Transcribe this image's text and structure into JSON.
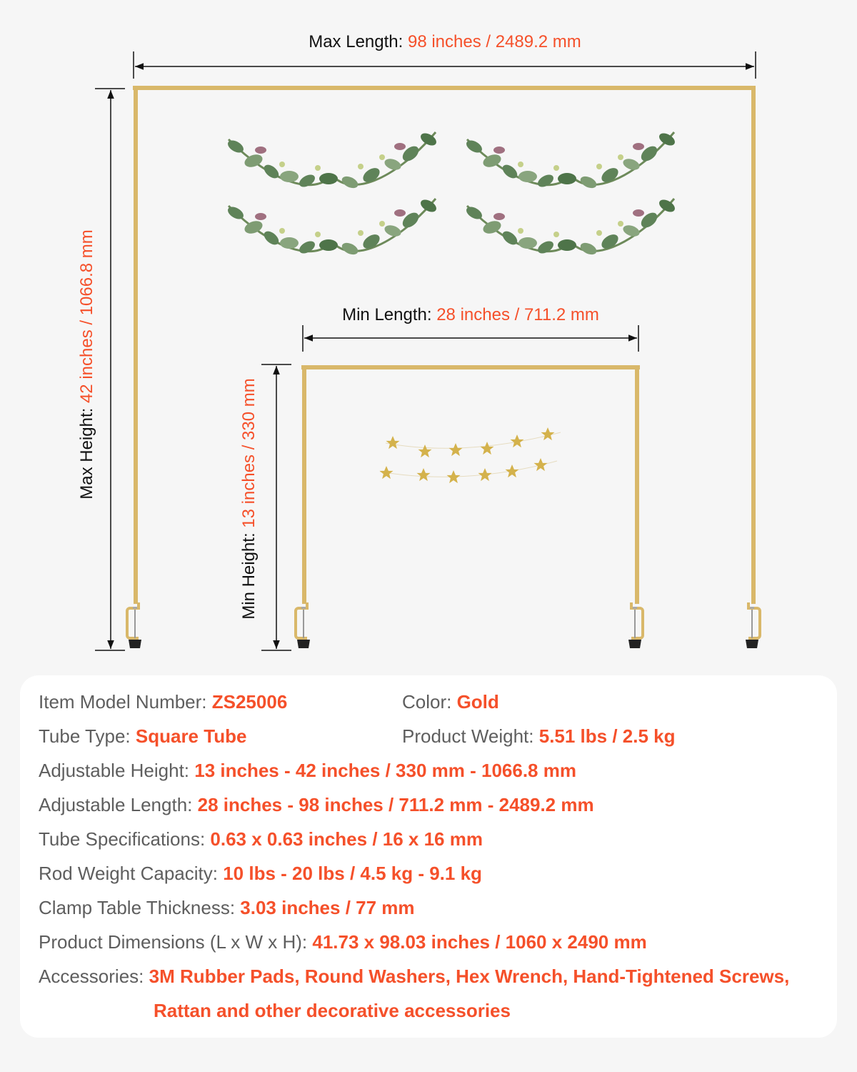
{
  "dimensions": {
    "max_length": {
      "label": "Max Length: ",
      "value": "98 inches / 2489.2 mm"
    },
    "max_height": {
      "label": "Max Height: ",
      "value": "42 inches / 1066.8 mm"
    },
    "min_length": {
      "label": "Min Length: ",
      "value": "28 inches / 711.2 mm"
    },
    "min_height": {
      "label": "Min Height: ",
      "value": "13 inches / 330 mm"
    }
  },
  "colors": {
    "accent": "#f5502a",
    "frame": "#d9b86a",
    "label": "#5e5e5e"
  },
  "specs": [
    {
      "label": "Item Model Number: ",
      "value": "ZS25006"
    },
    {
      "label": "Color: ",
      "value": "Gold"
    },
    {
      "label": "Tube Type: ",
      "value": "Square Tube"
    },
    {
      "label": "Product Weight: ",
      "value": "5.51 lbs / 2.5 kg"
    },
    {
      "label": "Adjustable Height: ",
      "value": "13 inches - 42 inches / 330 mm - 1066.8 mm"
    },
    {
      "label": "Adjustable Length: ",
      "value": "28 inches - 98 inches / 711.2 mm - 2489.2 mm"
    },
    {
      "label": "Tube Specifications: ",
      "value": "0.63 x 0.63 inches / 16 x 16 mm"
    },
    {
      "label": "Rod Weight Capacity: ",
      "value": "10 lbs - 20 lbs / 4.5 kg - 9.1 kg"
    },
    {
      "label": "Clamp Table Thickness: ",
      "value": "3.03 inches / 77 mm"
    },
    {
      "label": "Product Dimensions (L x W x H): ",
      "value": "41.73 x 98.03 inches / 1060 x 2490 mm"
    },
    {
      "label": "Accessories: ",
      "value": "3M Rubber Pads, Round Washers, Hex Wrench, Hand-Tightened Screws,",
      "value2": "Rattan and other decorative accessories"
    }
  ]
}
